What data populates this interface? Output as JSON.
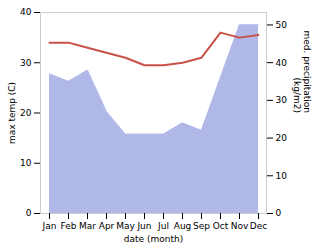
{
  "chart_data": {
    "type": "line",
    "categories": [
      "Jan",
      "Feb",
      "Mar",
      "Apr",
      "May",
      "Jun",
      "Jul",
      "Aug",
      "Sep",
      "Oct",
      "Nov",
      "Dec"
    ],
    "xlabel": "date (month)",
    "ylabel": "max temp (C)",
    "y2label": "med. precipitation\n(kg/m2)",
    "series": [
      {
        "type": "area",
        "axis": "y2",
        "color": "#b0b8e8",
        "values": [
          37,
          35,
          38,
          27,
          21,
          21,
          21,
          24,
          22,
          36,
          50,
          50
        ]
      },
      {
        "type": "line",
        "color": "#c8524a",
        "values": [
          34,
          34,
          33,
          32,
          31,
          29.5,
          29.5,
          30,
          31,
          36,
          35,
          35.5
        ]
      }
    ],
    "ylim": [
      0,
      40
    ],
    "yticks": [
      0,
      10,
      20,
      30,
      40
    ],
    "y2lim": [
      0,
      53.3
    ],
    "y2ticks": [
      0,
      10,
      20,
      30,
      40,
      50
    ]
  }
}
